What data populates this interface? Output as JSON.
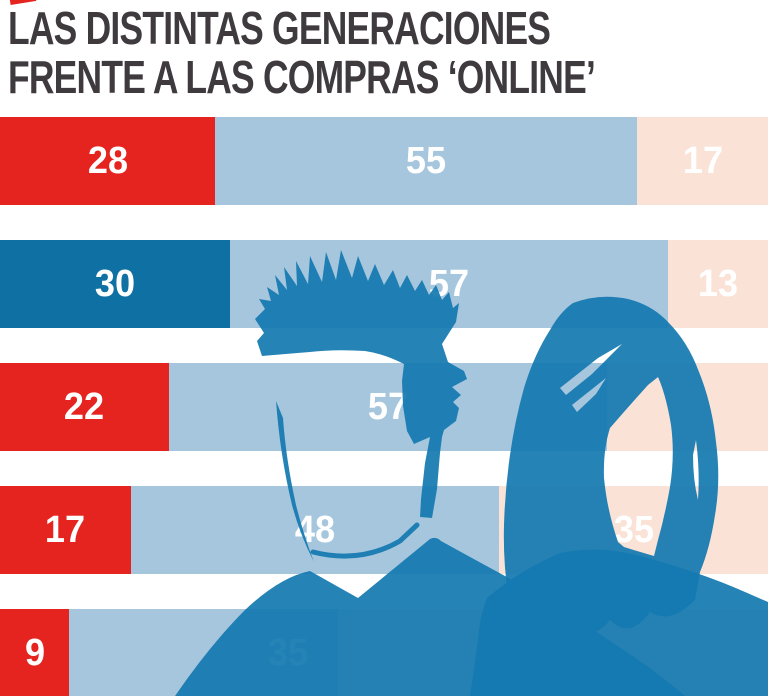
{
  "title": {
    "line1": "LAS DISTINTAS GENERACIONES",
    "line2": "FRENTE A LAS COMPRAS ‘ONLINE’"
  },
  "colors": {
    "title_text": "#3e3a3e",
    "background": "#ffffff",
    "label_text": "#ffffff",
    "silhouette": "#147ab0",
    "corner_tick": "#e52420"
  },
  "chart_data": {
    "type": "bar",
    "orientation": "horizontal",
    "stacked": true,
    "title": "LAS DISTINTAS GENERACIONES FRENTE A LAS COMPRAS ‘ONLINE’",
    "xlabel": "",
    "ylabel": "",
    "xlim": [
      0,
      100
    ],
    "units": "percent",
    "grid": false,
    "legend": "none visible (cropped)",
    "series_colors": {
      "red": "#e52420",
      "dark_blue": "#0f70a3",
      "light_blue": "#a6c6dd",
      "peach": "#fae3d6"
    },
    "rows": [
      {
        "segments": [
          {
            "value": 28,
            "color": "red",
            "label": "28"
          },
          {
            "value": 55,
            "color": "light_blue",
            "label": "55"
          },
          {
            "value": 17,
            "color": "peach",
            "label": "17"
          }
        ]
      },
      {
        "segments": [
          {
            "value": 30,
            "color": "dark_blue",
            "label": "30"
          },
          {
            "value": 57,
            "color": "light_blue",
            "label": "57"
          },
          {
            "value": 13,
            "color": "peach",
            "label": "13"
          }
        ]
      },
      {
        "segments": [
          {
            "value": 22,
            "color": "red",
            "label": "22"
          },
          {
            "value": 57,
            "color": "light_blue",
            "label": "57"
          },
          {
            "value": 21,
            "color": "peach",
            "label": ""
          }
        ]
      },
      {
        "segments": [
          {
            "value": 17,
            "color": "red",
            "label": "17"
          },
          {
            "value": 48,
            "color": "light_blue",
            "label": "48"
          },
          {
            "value": 35,
            "color": "peach",
            "label": "35"
          }
        ]
      },
      {
        "segments": [
          {
            "value": 9,
            "color": "red",
            "label": "9"
          },
          {
            "value": 35,
            "color": "light_blue",
            "label": "35"
          },
          {
            "value": 56,
            "color": "peach",
            "label": "56"
          }
        ]
      }
    ]
  },
  "illustration": {
    "man": "male silhouette with spiky hair, head and shoulders",
    "woman": "female silhouette with long hair, head and shoulders",
    "color": "#147ab0"
  }
}
